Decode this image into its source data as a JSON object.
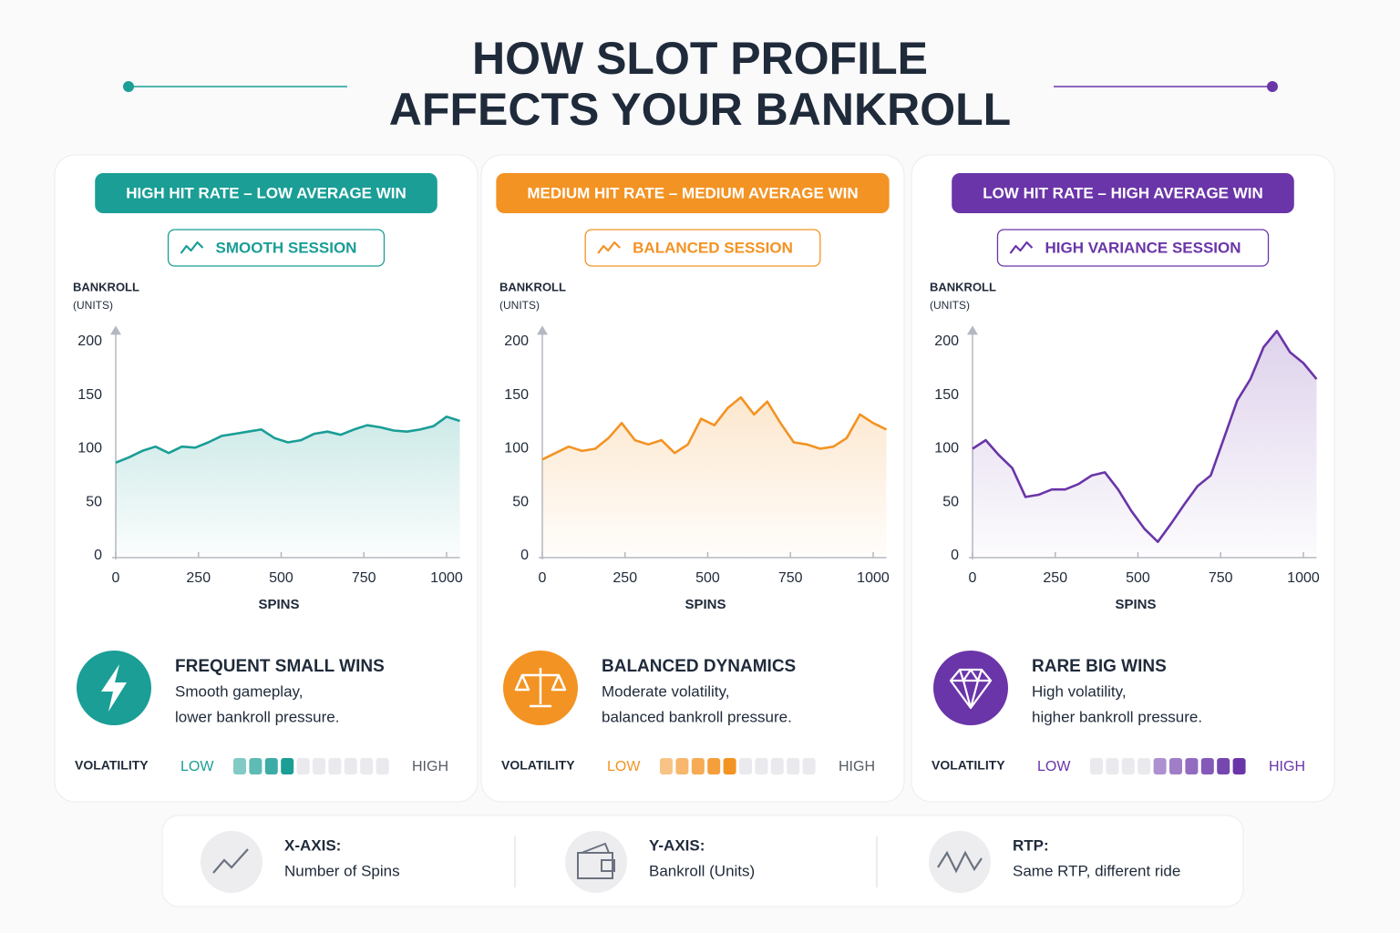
{
  "title": [
    "HOW SLOT PROFILE",
    "AFFECTS YOUR BANKROLL"
  ],
  "chart_data": [
    {
      "type": "line",
      "title": "HIGH HIT RATE – LOW AVERAGE WIN",
      "subtitle": "SMOOTH SESSION",
      "color": "#1a9e96",
      "ylabel": [
        "BANKROLL",
        "(UNITS)"
      ],
      "xlabel": "SPINS",
      "xlim": [
        0,
        1040
      ],
      "xticks": [
        0,
        250,
        500,
        750,
        1000
      ],
      "ylim": [
        0,
        215
      ],
      "yticks": [
        0,
        50,
        100,
        150,
        200
      ],
      "x": [
        0,
        40,
        80,
        120,
        160,
        200,
        240,
        280,
        320,
        360,
        400,
        440,
        480,
        520,
        560,
        600,
        640,
        680,
        720,
        760,
        800,
        840,
        880,
        920,
        960,
        1000,
        1040
      ],
      "values": [
        87,
        92,
        98,
        102,
        96,
        102,
        101,
        106,
        112,
        114,
        116,
        118,
        110,
        106,
        108,
        114,
        116,
        113,
        118,
        122,
        120,
        117,
        116,
        118,
        121,
        130,
        126
      ],
      "summary": {
        "heading": "FREQUENT SMALL WINS",
        "lines": [
          "Smooth gameplay,",
          "lower bankroll pressure."
        ]
      },
      "volatility": {
        "label": "VOLATILITY",
        "low": "LOW",
        "high": "HIGH",
        "segments": 10,
        "filled_from": 0,
        "filled_to": 4
      }
    },
    {
      "type": "line",
      "title": "MEDIUM HIT RATE – MEDIUM AVERAGE WIN",
      "subtitle": "BALANCED SESSION",
      "color": "#f39323",
      "ylabel": [
        "BANKROLL",
        "(UNITS)"
      ],
      "xlabel": "SPINS",
      "xlim": [
        0,
        1040
      ],
      "xticks": [
        0,
        250,
        500,
        750,
        1000
      ],
      "ylim": [
        0,
        215
      ],
      "yticks": [
        0,
        50,
        100,
        150,
        200
      ],
      "x": [
        0,
        40,
        80,
        120,
        160,
        200,
        240,
        280,
        320,
        360,
        400,
        440,
        480,
        520,
        560,
        600,
        640,
        680,
        720,
        760,
        800,
        840,
        880,
        920,
        960,
        1000,
        1040
      ],
      "values": [
        90,
        96,
        102,
        98,
        100,
        110,
        124,
        108,
        104,
        108,
        96,
        104,
        128,
        122,
        138,
        148,
        132,
        144,
        124,
        106,
        104,
        100,
        102,
        110,
        132,
        124,
        118
      ],
      "summary": {
        "heading": "BALANCED DYNAMICS",
        "lines": [
          "Moderate volatility,",
          "balanced bankroll pressure."
        ]
      },
      "volatility": {
        "label": "VOLATILITY",
        "low": "LOW",
        "high": "HIGH",
        "segments": 10,
        "filled_from": 0,
        "filled_to": 5
      }
    },
    {
      "type": "line",
      "title": "LOW HIT RATE – HIGH AVERAGE WIN",
      "subtitle": "HIGH VARIANCE SESSION",
      "color": "#6a35a8",
      "ylabel": [
        "BANKROLL",
        "(UNITS)"
      ],
      "xlabel": "SPINS",
      "xlim": [
        0,
        1040
      ],
      "xticks": [
        0,
        250,
        500,
        750,
        1000
      ],
      "ylim": [
        0,
        215
      ],
      "yticks": [
        0,
        50,
        100,
        150,
        200
      ],
      "x": [
        0,
        40,
        80,
        120,
        160,
        200,
        240,
        280,
        320,
        360,
        400,
        440,
        480,
        520,
        560,
        600,
        640,
        680,
        720,
        760,
        800,
        840,
        880,
        920,
        960,
        1000,
        1040
      ],
      "values": [
        100,
        108,
        94,
        82,
        55,
        57,
        62,
        62,
        67,
        75,
        78,
        62,
        42,
        25,
        13,
        30,
        48,
        65,
        75,
        110,
        145,
        165,
        195,
        210,
        190,
        180,
        165
      ],
      "summary": {
        "heading": "RARE BIG WINS",
        "lines": [
          "High volatility,",
          "higher bankroll pressure."
        ]
      },
      "volatility": {
        "label": "VOLATILITY",
        "low": "LOW",
        "high": "HIGH",
        "segments": 10,
        "filled_from": 4,
        "filled_to": 10
      }
    }
  ],
  "notes": [
    {
      "heading": "X-AXIS:",
      "text": "Number of Spins"
    },
    {
      "heading": "Y-AXIS:",
      "text": "Bankroll (Units)"
    },
    {
      "heading": "RTP:",
      "text": "Same RTP, different ride"
    }
  ]
}
